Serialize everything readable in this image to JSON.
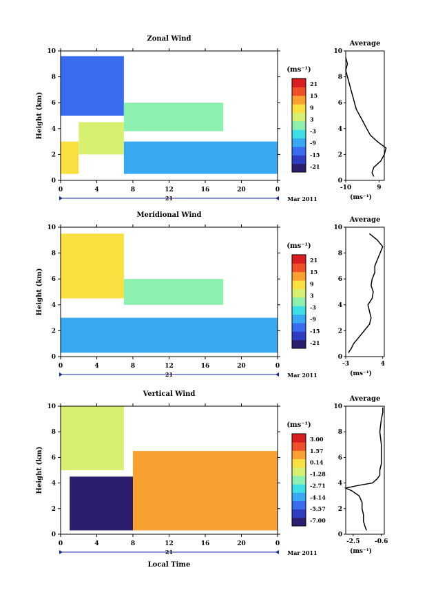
{
  "panels": [
    {
      "title": "Zonal Wind",
      "ylabel": "Height (km)",
      "unit_label": "(ms⁻¹)",
      "colorbar_ticks": [
        "21",
        "15",
        "9",
        "3",
        "-3",
        "-9",
        "-15",
        "-21"
      ],
      "avg_title": "Average",
      "avg_xticks": [
        "-10",
        "9"
      ],
      "avg_xlabel": "(ms⁻¹)"
    },
    {
      "title": "Meridional Wind",
      "ylabel": "Height (km)",
      "unit_label": "(ms⁻¹)",
      "colorbar_ticks": [
        "21",
        "15",
        "9",
        "3",
        "-3",
        "-9",
        "-15",
        "-21"
      ],
      "avg_title": "Average",
      "avg_xticks": [
        "-3",
        "4"
      ],
      "avg_xlabel": "(ms⁻¹)"
    },
    {
      "title": "Vertical Wind",
      "ylabel": "Height (km)",
      "unit_label": "(ms⁻¹)",
      "colorbar_ticks": [
        "3.00",
        "1.57",
        "0.14",
        "-1.28",
        "-2.71",
        "-4.14",
        "-5.57",
        "-7.00"
      ],
      "avg_title": "Average",
      "avg_xticks": [
        "-2.5",
        "-0.6"
      ],
      "avg_xlabel": "(ms⁻¹)"
    }
  ],
  "date_label": "Mar 2011",
  "day_label": "21",
  "xlabel_bottom": "Local Time",
  "chart_data": [
    {
      "type": "heatmap",
      "title": "Zonal Wind",
      "ylabel": "Height (km)",
      "x_ticks": [
        "0",
        "4",
        "8",
        "12",
        "16",
        "20",
        "0"
      ],
      "y_ticks": [
        "0",
        "2",
        "4",
        "6",
        "8",
        "10"
      ],
      "xlim": [
        0,
        24
      ],
      "ylim": [
        0,
        10
      ],
      "colorbar": {
        "min": -21,
        "max": 21,
        "ticks": [
          21,
          15,
          9,
          3,
          -3,
          -9,
          -15,
          -21
        ],
        "unit": "(ms⁻¹)"
      },
      "regions": [
        {
          "t": [
            0,
            7
          ],
          "z": [
            5,
            9.6
          ],
          "value": -12
        },
        {
          "t": [
            0,
            2
          ],
          "z": [
            0.5,
            3
          ],
          "value": 6
        },
        {
          "t": [
            2,
            7
          ],
          "z": [
            2,
            4.5
          ],
          "value": 4
        },
        {
          "t": [
            7,
            18
          ],
          "z": [
            3.8,
            6
          ],
          "value": -1
        },
        {
          "t": [
            7,
            24
          ],
          "z": [
            0.5,
            3
          ],
          "value": -8
        }
      ],
      "average_profile": {
        "x_ticks": [
          "-10",
          "9"
        ],
        "xlim": [
          -10,
          12
        ],
        "xlabel": "(ms⁻¹)",
        "title": "Average",
        "height": [
          0.3,
          0.6,
          1,
          1.5,
          2,
          2.5,
          3,
          3.5,
          4,
          4.5,
          5,
          5.5,
          6,
          6.5,
          7,
          7.5,
          8,
          8.5,
          9,
          9.5
        ],
        "value": [
          6,
          5,
          6,
          10,
          12,
          13,
          8,
          4,
          2,
          0,
          -2,
          -4,
          -5,
          -6,
          -7,
          -8,
          -9,
          -10,
          -9,
          -10
        ]
      }
    },
    {
      "type": "heatmap",
      "title": "Meridional Wind",
      "ylabel": "Height (km)",
      "x_ticks": [
        "0",
        "4",
        "8",
        "12",
        "16",
        "20",
        "0"
      ],
      "y_ticks": [
        "0",
        "2",
        "4",
        "6",
        "8",
        "10"
      ],
      "xlim": [
        0,
        24
      ],
      "ylim": [
        0,
        10
      ],
      "colorbar": {
        "min": -21,
        "max": 21,
        "ticks": [
          21,
          15,
          9,
          3,
          -3,
          -9,
          -15,
          -21
        ],
        "unit": "(ms⁻¹)"
      },
      "regions": [
        {
          "t": [
            0,
            7
          ],
          "z": [
            4.5,
            9.5
          ],
          "value": 7
        },
        {
          "t": [
            7,
            18
          ],
          "z": [
            4,
            6
          ],
          "value": 1
        },
        {
          "t": [
            0,
            24
          ],
          "z": [
            0.3,
            3
          ],
          "value": -6
        }
      ],
      "average_profile": {
        "x_ticks": [
          "-3",
          "4"
        ],
        "xlim": [
          -3,
          4.3
        ],
        "xlabel": "(ms⁻¹)",
        "title": "Average",
        "height": [
          0.3,
          0.6,
          1,
          1.5,
          2,
          2.5,
          3,
          3.5,
          4,
          4.5,
          5,
          5.5,
          6,
          6.5,
          7,
          7.5,
          8,
          8.5,
          9,
          9.5
        ],
        "value": [
          -2.5,
          -2,
          -1.5,
          -0.5,
          0.5,
          1.5,
          1.8,
          1.5,
          1.2,
          2,
          2.2,
          1.8,
          2,
          2.5,
          2.5,
          3,
          3.5,
          4,
          3,
          1.5
        ]
      }
    },
    {
      "type": "heatmap",
      "title": "Vertical Wind",
      "ylabel": "Height (km)",
      "xlabel": "Local Time",
      "x_ticks": [
        "0",
        "4",
        "8",
        "12",
        "16",
        "20",
        "0"
      ],
      "y_ticks": [
        "0",
        "2",
        "4",
        "6",
        "8",
        "10"
      ],
      "xlim": [
        0,
        24
      ],
      "ylim": [
        0,
        10
      ],
      "colorbar": {
        "min": -7.0,
        "max": 3.0,
        "ticks": [
          3.0,
          1.57,
          0.14,
          -1.28,
          -2.71,
          -4.14,
          -5.57,
          -7.0
        ],
        "unit": "(ms⁻¹)"
      },
      "regions": [
        {
          "t": [
            0,
            7
          ],
          "z": [
            5,
            10
          ],
          "value": -1.5
        },
        {
          "t": [
            1,
            8
          ],
          "z": [
            0.3,
            4.5
          ],
          "value": -6.5
        },
        {
          "t": [
            8,
            24
          ],
          "z": [
            0.3,
            6.5
          ],
          "value": 0.5
        }
      ],
      "average_profile": {
        "x_ticks": [
          "-2.5",
          "-0.6"
        ],
        "xlim": [
          -3.0,
          -0.4
        ],
        "xlabel": "(ms⁻¹)",
        "title": "Average",
        "height": [
          0.3,
          0.6,
          1,
          1.5,
          2,
          2.5,
          3,
          3.4,
          3.6,
          3.8,
          4,
          4.3,
          4.6,
          5,
          5.5,
          6,
          7,
          8,
          9,
          9.5,
          9.9
        ],
        "value": [
          -1.6,
          -1.7,
          -1.8,
          -1.8,
          -1.9,
          -1.9,
          -2.1,
          -2.6,
          -3.0,
          -2.2,
          -1.2,
          -0.9,
          -0.7,
          -0.7,
          -0.6,
          -0.6,
          -0.6,
          -0.7,
          -0.6,
          -0.5,
          -0.5
        ]
      }
    }
  ]
}
